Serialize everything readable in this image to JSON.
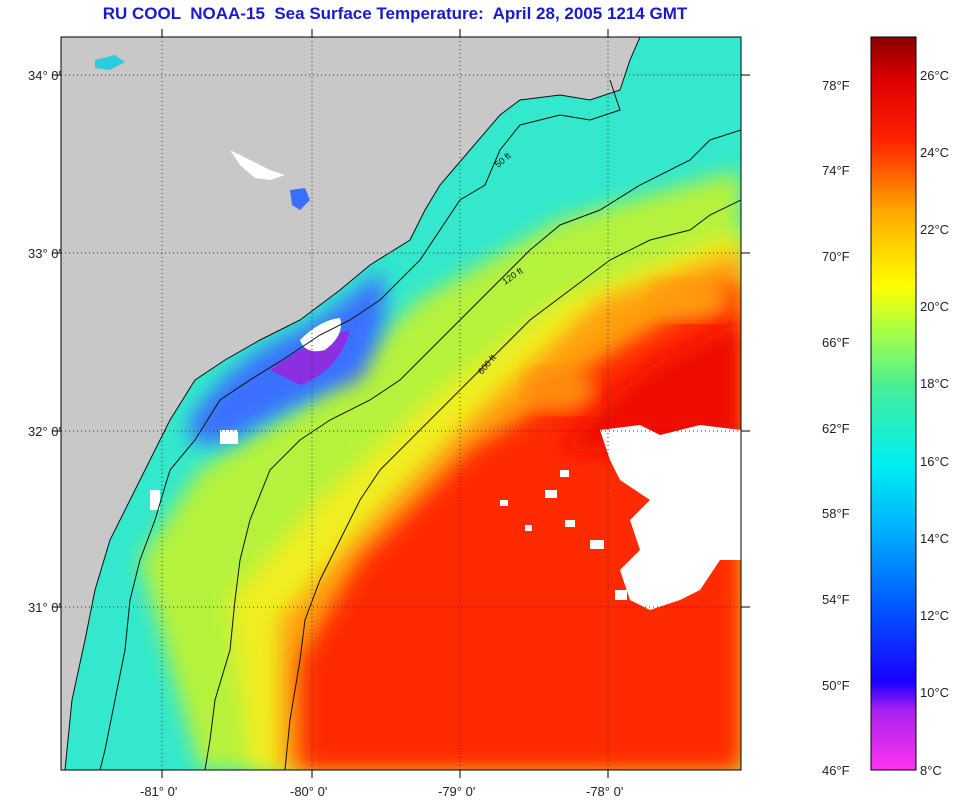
{
  "title": "RU COOL  NOAA-15  Sea Surface Temperature:  April 28, 2005 1214 GMT",
  "map": {
    "lat_labels": [
      "34° 0'",
      "33° 0'",
      "32° 0'",
      "31° 0'"
    ],
    "lon_labels": [
      "-81° 0'",
      "-80° 0'",
      "-79° 0'",
      "-78° 0'"
    ],
    "contour_labels": [
      "50 ft",
      "120 ft",
      "600 ft"
    ],
    "colors": {
      "land": "#c8c8c8",
      "cloud": "#ffffff"
    }
  },
  "colorbar": {
    "fahrenheit": [
      "78°F",
      "74°F",
      "70°F",
      "66°F",
      "62°F",
      "58°F",
      "54°F",
      "50°F",
      "46°F"
    ],
    "celsius": [
      "26°C",
      "24°C",
      "22°C",
      "20°C",
      "18°C",
      "16°C",
      "14°C",
      "12°C",
      "10°C",
      "8°C"
    ]
  }
}
